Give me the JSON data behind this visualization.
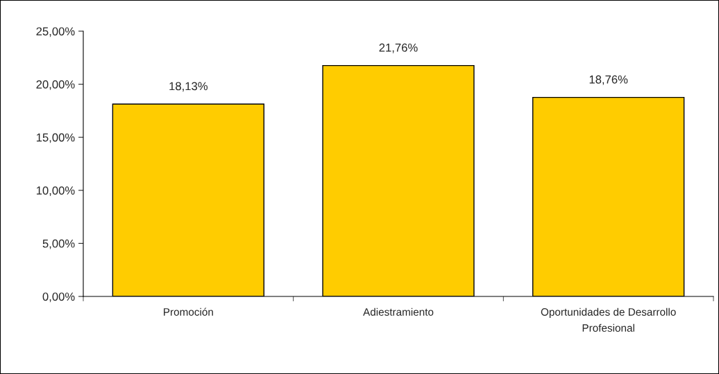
{
  "chart_data": {
    "type": "bar",
    "categories": [
      "Promoción",
      "Adiestramiento",
      "Oportunidades de Desarrollo\nProfesional"
    ],
    "values": [
      18.13,
      21.76,
      18.76
    ],
    "value_labels": [
      "18,13%",
      "21,76%",
      "18,76%"
    ],
    "color": "#ffcc00",
    "ylim": [
      0,
      25
    ],
    "yticks": [
      {
        "value": 0,
        "label": "0,00%"
      },
      {
        "value": 5,
        "label": "5,00%"
      },
      {
        "value": 10,
        "label": "10,00%"
      },
      {
        "value": 15,
        "label": "15,00%"
      },
      {
        "value": 20,
        "label": "20,00%"
      },
      {
        "value": 25,
        "label": "25,00%"
      }
    ],
    "grid": false,
    "legend": false
  }
}
